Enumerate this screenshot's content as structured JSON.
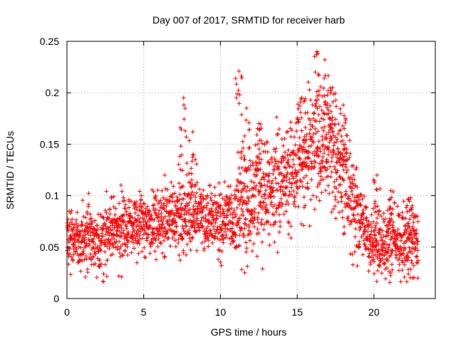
{
  "chart_data": {
    "type": "scatter",
    "title": "Day 007 of 2017, SRMTID for receiver harb",
    "xlabel": "GPS time / hours",
    "ylabel": "SRMTID / TECUs",
    "xlim": [
      0,
      24
    ],
    "ylim": [
      0,
      0.25
    ],
    "xticks": [
      0,
      5,
      10,
      15,
      20
    ],
    "xtick_labels": [
      "0",
      "5",
      "10",
      "15",
      "20"
    ],
    "yticks": [
      0,
      0.05,
      0.1,
      0.15,
      0.2,
      0.25
    ],
    "ytick_labels": [
      "0",
      "0.05",
      "0.1",
      "0.15",
      "0.2",
      "0.25"
    ],
    "grid": true,
    "marker": "plus",
    "color": "#ff0000",
    "series": [
      {
        "name": "SRMTID",
        "data_x_range": [
          0,
          22.9
        ],
        "trend": [
          [
            0.0,
            0.06
          ],
          [
            1.0,
            0.058
          ],
          [
            2.0,
            0.052
          ],
          [
            3.0,
            0.065
          ],
          [
            4.0,
            0.068
          ],
          [
            5.0,
            0.07
          ],
          [
            6.0,
            0.075
          ],
          [
            7.0,
            0.08
          ],
          [
            8.0,
            0.082
          ],
          [
            9.0,
            0.078
          ],
          [
            10.0,
            0.07
          ],
          [
            11.0,
            0.085
          ],
          [
            12.0,
            0.095
          ],
          [
            13.0,
            0.1
          ],
          [
            14.0,
            0.11
          ],
          [
            15.0,
            0.13
          ],
          [
            16.0,
            0.145
          ],
          [
            17.0,
            0.14
          ],
          [
            18.0,
            0.12
          ],
          [
            19.0,
            0.08
          ],
          [
            20.0,
            0.05
          ],
          [
            21.0,
            0.058
          ],
          [
            22.0,
            0.055
          ],
          [
            22.9,
            0.052
          ]
        ],
        "peaks": [
          [
            7.6,
            0.195
          ],
          [
            8.2,
            0.162
          ],
          [
            11.2,
            0.221
          ],
          [
            11.7,
            0.185
          ],
          [
            12.5,
            0.17
          ],
          [
            15.3,
            0.195
          ],
          [
            16.3,
            0.24
          ],
          [
            16.8,
            0.232
          ],
          [
            17.3,
            0.205
          ],
          [
            18.0,
            0.188
          ],
          [
            20.2,
            0.12
          ],
          [
            21.1,
            0.105
          ],
          [
            22.4,
            0.098
          ]
        ]
      }
    ]
  }
}
